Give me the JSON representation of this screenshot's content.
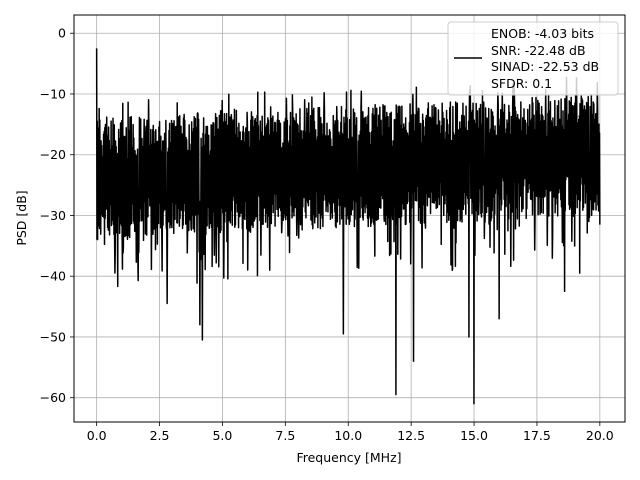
{
  "chart_data": {
    "type": "line",
    "xlabel": "Frequency [MHz]",
    "ylabel": "PSD [dB]",
    "xlim": [
      -0.9,
      21.0
    ],
    "ylim": [
      -64.0,
      3.0
    ],
    "xticks": [
      0.0,
      2.5,
      5.0,
      7.5,
      10.0,
      12.5,
      15.0,
      17.5,
      20.0
    ],
    "xtick_labels": [
      "0.0",
      "2.5",
      "5.0",
      "7.5",
      "10.0",
      "12.5",
      "15.0",
      "17.5",
      "20.0"
    ],
    "yticks": [
      0,
      -10,
      -20,
      -30,
      -40,
      -50,
      -60
    ],
    "ytick_labels": [
      "0",
      "−10",
      "−20",
      "−30",
      "−40",
      "−50",
      "−60"
    ],
    "grid": true,
    "legend_position": "top-right",
    "series": [
      {
        "color": "#000000",
        "x_range": [
          0.0,
          20.0
        ],
        "n_points": 1600,
        "spikes": [
          {
            "x": 0.0,
            "y": -2.5
          },
          {
            "x": 0.03,
            "y": -14.5
          },
          {
            "x": 0.08,
            "y": -19.0
          },
          {
            "x": 2.8,
            "y": -44.5
          },
          {
            "x": 4.1,
            "y": -48.0
          },
          {
            "x": 4.2,
            "y": -50.5
          },
          {
            "x": 9.8,
            "y": -49.5
          },
          {
            "x": 11.9,
            "y": -59.5
          },
          {
            "x": 12.6,
            "y": -54.0
          },
          {
            "x": 14.8,
            "y": -50.0
          },
          {
            "x": 15.0,
            "y": -61.0
          },
          {
            "x": 16.0,
            "y": -47.0
          },
          {
            "x": 18.6,
            "y": -42.5
          },
          {
            "x": 19.2,
            "y": -39.5
          },
          {
            "x": 20.0,
            "y": -31.5
          }
        ]
      }
    ],
    "legend": {
      "lines": [
        "ENOB: -4.03 bits",
        "SNR: -22.48 dB",
        "SINAD: -22.53 dB",
        "SFDR: 0.1"
      ]
    }
  }
}
